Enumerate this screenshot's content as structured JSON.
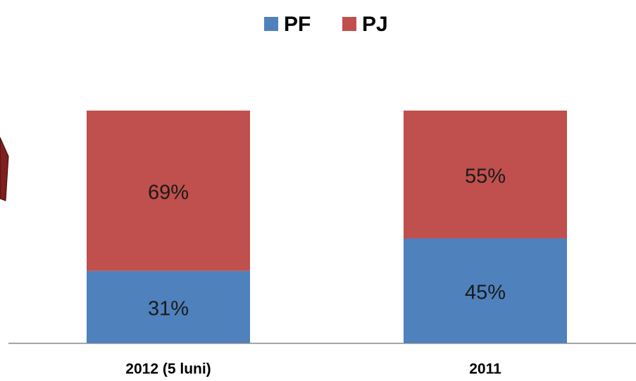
{
  "chart_data": {
    "type": "bar",
    "stacked": true,
    "categories": [
      "2012 (5 luni)",
      "2011"
    ],
    "series": [
      {
        "name": "PF",
        "color": "#4f81bd",
        "values": [
          31,
          45
        ],
        "value_labels": [
          "31%",
          "45%"
        ]
      },
      {
        "name": "PJ",
        "color": "#c0504d",
        "values": [
          69,
          55
        ],
        "value_labels": [
          "69%",
          "55%"
        ]
      }
    ],
    "ylim": [
      0,
      100
    ],
    "legend": "top"
  }
}
